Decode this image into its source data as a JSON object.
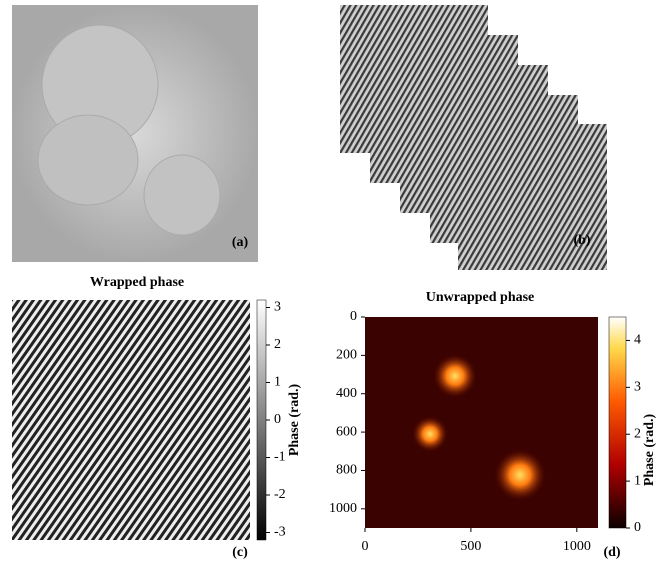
{
  "panels": [
    {
      "label": "(a)"
    },
    {
      "label": "(b)"
    },
    {
      "label": "(c)",
      "title": "Wrapped phase",
      "colorbar": {
        "label": "Phase (rad.)",
        "lim": [
          -3.2,
          3.2
        ],
        "ticks": [
          3,
          2,
          1,
          0,
          -1,
          -2,
          -3
        ]
      }
    },
    {
      "label": "(d)",
      "title": "Unwrapped phase",
      "xlim": [
        0,
        1100
      ],
      "xticks": [
        0,
        500,
        1000
      ],
      "ylim": [
        0,
        1100
      ],
      "yticks": [
        0,
        200,
        400,
        600,
        800,
        1000
      ],
      "colorbar": {
        "label": "Phase (rad.)",
        "lim": [
          0,
          4.5
        ],
        "ticks": [
          4,
          3,
          2,
          1,
          0
        ]
      }
    }
  ]
}
